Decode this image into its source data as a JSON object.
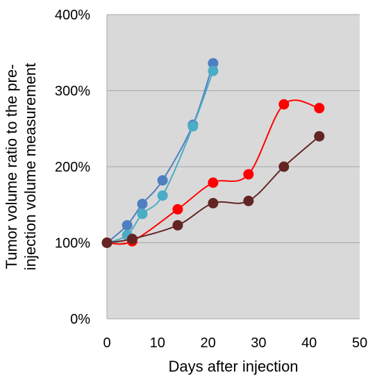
{
  "chart_data": {
    "type": "line",
    "title": "",
    "xlabel": "Days after injection",
    "ylabel_lines": [
      "Tumor volume ratio to the pre-",
      "injection volume measurement"
    ],
    "xlim": [
      0,
      50
    ],
    "ylim": [
      0,
      400
    ],
    "xticks": [
      0,
      10,
      20,
      30,
      40,
      50
    ],
    "yticks": [
      0,
      100,
      200,
      300,
      400
    ],
    "y_tick_suffix": "%",
    "grid": "horizontal",
    "plot_background": "#d9d9d9",
    "series": [
      {
        "color": "#4f7fc0",
        "x": [
          0,
          4,
          7,
          11,
          17,
          21
        ],
        "y": [
          100,
          123,
          151,
          182,
          255,
          336
        ]
      },
      {
        "color": "#4bacc6",
        "x": [
          0,
          4,
          7,
          11,
          17,
          21
        ],
        "y": [
          100,
          110,
          138,
          162,
          253,
          326
        ]
      },
      {
        "color": "#ff0000",
        "x": [
          0,
          5,
          14,
          21,
          28,
          35,
          42
        ],
        "y": [
          100,
          102,
          144,
          179,
          190,
          282,
          277
        ]
      },
      {
        "color": "#632523",
        "x": [
          0,
          5,
          14,
          21,
          28,
          35,
          42
        ],
        "y": [
          100,
          105,
          123,
          152,
          155,
          200,
          240
        ]
      }
    ]
  }
}
